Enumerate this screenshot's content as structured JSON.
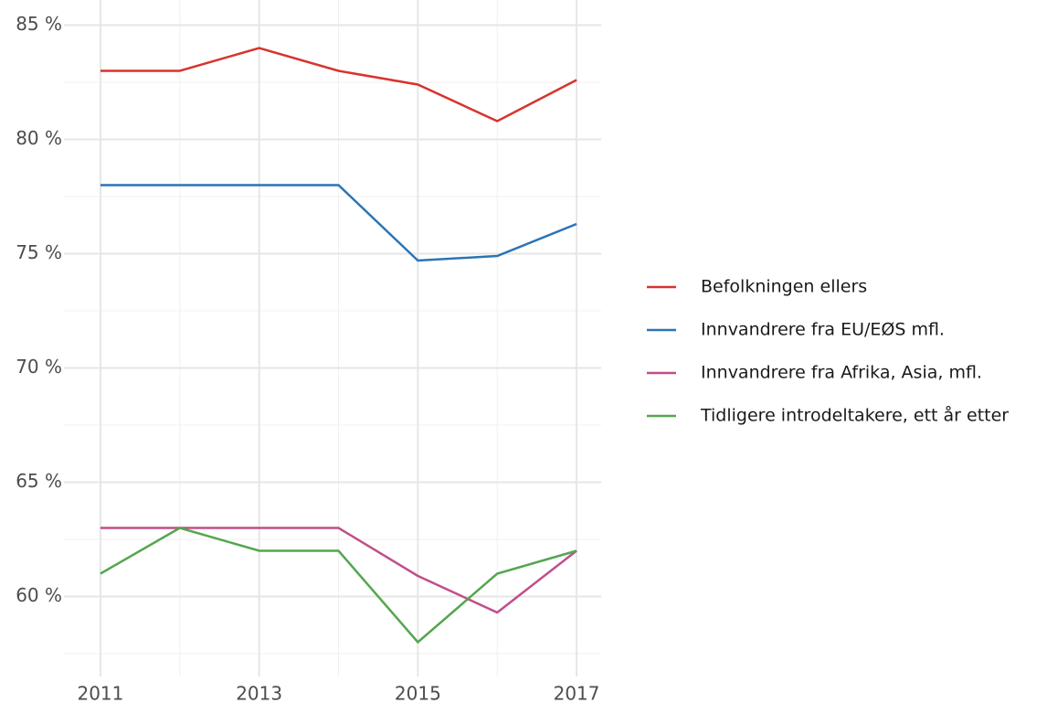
{
  "chart_data": {
    "type": "line",
    "x": [
      2011,
      2012,
      2013,
      2014,
      2015,
      2016,
      2017
    ],
    "series": [
      {
        "name": "Befolkningen ellers",
        "color": "#d7342e",
        "values": [
          83,
          83,
          84,
          83,
          82.4,
          80.8,
          82.6
        ]
      },
      {
        "name": "Innvandrere fra EU/EØS mfl.",
        "color": "#2b74b7",
        "values": [
          78,
          78,
          78,
          78,
          74.7,
          74.9,
          76.3
        ]
      },
      {
        "name": "Innvandrere fra Afrika, Asia, mfl.",
        "color": "#c04f89",
        "values": [
          63,
          63,
          63,
          63,
          60.9,
          59.3,
          62
        ]
      },
      {
        "name": "Tidligere introdeltakere, ett år etter",
        "color": "#54a64f",
        "values": [
          61,
          63,
          62,
          62,
          58,
          61,
          62
        ]
      }
    ],
    "xlim": [
      2010.54,
      2017.31
    ],
    "ylim": [
      56.5,
      86.1
    ],
    "xticks": [
      2011,
      2013,
      2015,
      2017
    ],
    "xminor": [
      2012,
      2014,
      2016
    ],
    "yticks": [
      {
        "value": 60,
        "label": "60 %"
      },
      {
        "value": 65,
        "label": "65 %"
      },
      {
        "value": 70,
        "label": "70 %"
      },
      {
        "value": 75,
        "label": "75 %"
      },
      {
        "value": 80,
        "label": "80 %"
      },
      {
        "value": 85,
        "label": "85 %"
      }
    ],
    "yminor": [
      57.5,
      62.5,
      67.5,
      72.5,
      77.5,
      82.5
    ],
    "grid": true,
    "legend": "right"
  }
}
